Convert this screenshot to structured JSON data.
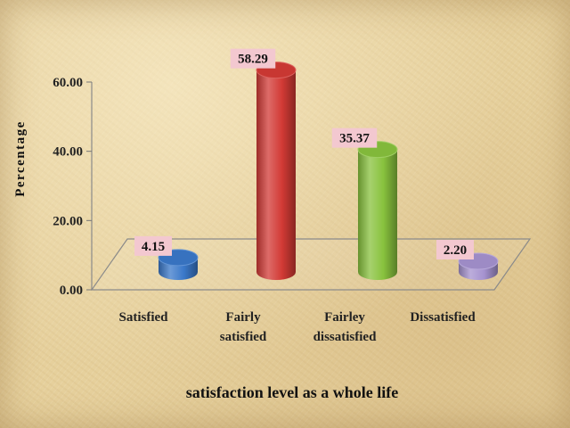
{
  "chart_data": {
    "type": "bar",
    "style": "3d-cylinder",
    "categories": [
      [
        "Satisfied"
      ],
      [
        "Fairly",
        "satisfied"
      ],
      [
        "Fairley",
        "dissatisfied"
      ],
      [
        "Dissatisfied"
      ]
    ],
    "values": [
      4.15,
      58.29,
      35.37,
      2.2
    ],
    "value_labels": [
      "4.15",
      "58.29",
      "35.37",
      "2.20"
    ],
    "bar_colors": [
      "#3a78c9",
      "#d23a35",
      "#88c23d",
      "#a592cf"
    ],
    "xlabel": "satisfaction level as a whole life",
    "ylabel": "Percentage",
    "ylim": [
      0,
      60
    ],
    "yticks": [
      0,
      20,
      40,
      60
    ],
    "ytick_labels": [
      "0.00",
      "20.00",
      "40.00",
      "60.00"
    ],
    "grid": false,
    "legend": "none"
  }
}
